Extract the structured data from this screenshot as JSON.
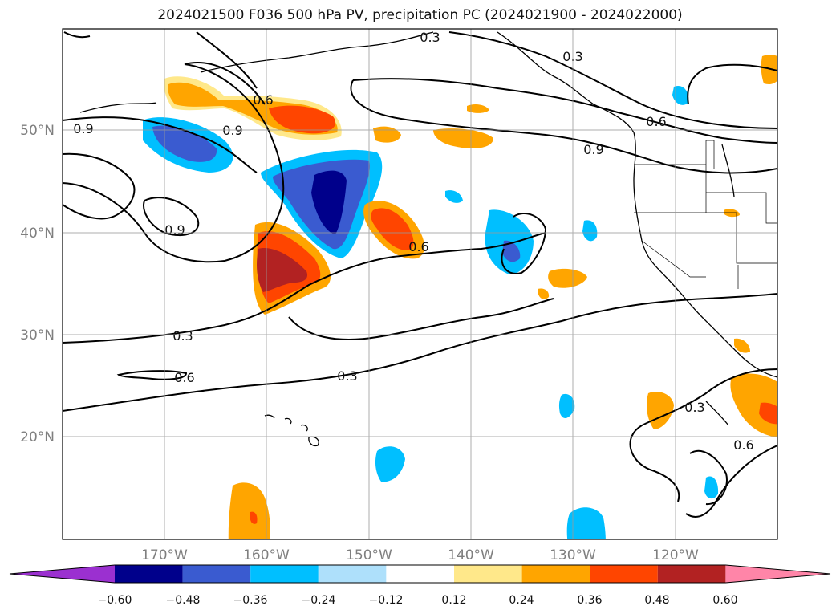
{
  "title": "2024021500 F036 500 hPa PV, precipitation PC (2024021900 - 2024022000)",
  "map": {
    "lat_labels": [
      "20°N",
      "30°N",
      "40°N",
      "50°N"
    ],
    "lon_labels": [
      "170°W",
      "160°W",
      "150°W",
      "140°W",
      "130°W",
      "120°W"
    ],
    "lat_range": [
      10,
      60
    ],
    "lon_range": [
      -180,
      -110
    ],
    "gridlines": true
  },
  "contours": {
    "variable": "500 hPa PV",
    "levels": [
      "0.3",
      "0.6",
      "0.9"
    ]
  },
  "colorbar": {
    "ticks": [
      "−0.60",
      "−0.48",
      "−0.36",
      "−0.24",
      "−0.12",
      "0.12",
      "0.24",
      "0.36",
      "0.48",
      "0.60"
    ],
    "colors": [
      "#9b30d0",
      "#00008b",
      "#3a5bd0",
      "#00bfff",
      "#aee0fb",
      "#ffffff",
      "#ffe88a",
      "#ffa500",
      "#ff4500",
      "#b22222",
      "#ff85a8"
    ],
    "extend": "both"
  }
}
